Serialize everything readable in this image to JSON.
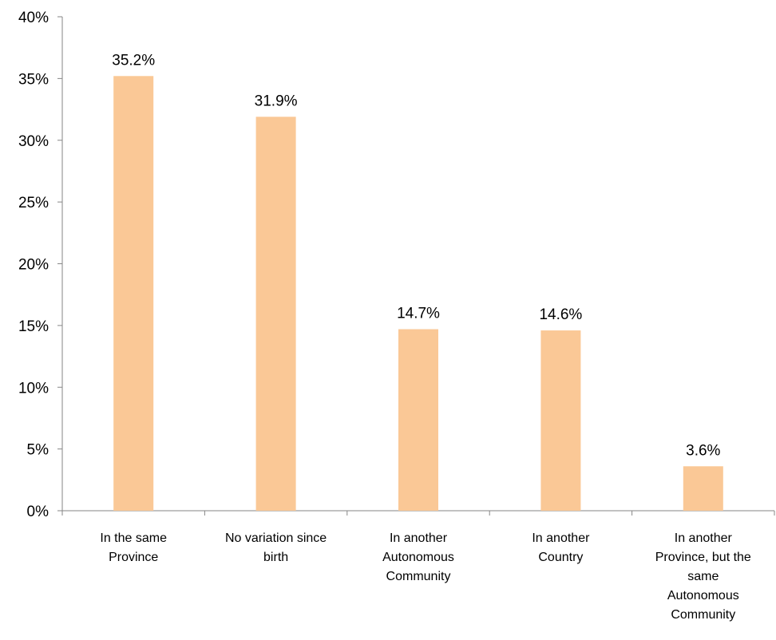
{
  "chart_data": {
    "type": "bar",
    "categories": [
      "In the same Province",
      "No variation since birth",
      "In another Autonomous Community",
      "In another Country",
      "In another Province, but the same Autonomous Community"
    ],
    "category_label_lines": [
      [
        "In the same",
        "Province"
      ],
      [
        "No variation since",
        "birth"
      ],
      [
        "In another",
        "Autonomous",
        "Community"
      ],
      [
        "In another",
        "Country"
      ],
      [
        "In another",
        "Province, but the",
        "same",
        "Autonomous",
        "Community"
      ]
    ],
    "values": [
      35.2,
      31.9,
      14.7,
      14.6,
      3.6
    ],
    "data_labels": [
      "35.2%",
      "31.9%",
      "14.7%",
      "14.6%",
      "3.6%"
    ],
    "yticks": [
      0,
      5,
      10,
      15,
      20,
      25,
      30,
      35,
      40
    ],
    "ytick_labels": [
      "0%",
      "5%",
      "10%",
      "15%",
      "20%",
      "25%",
      "30%",
      "35%",
      "40%"
    ],
    "ylim": [
      0,
      40
    ],
    "grid": false,
    "legend": "none",
    "bar_color": "#FAC896",
    "axis_color": "#868686"
  }
}
